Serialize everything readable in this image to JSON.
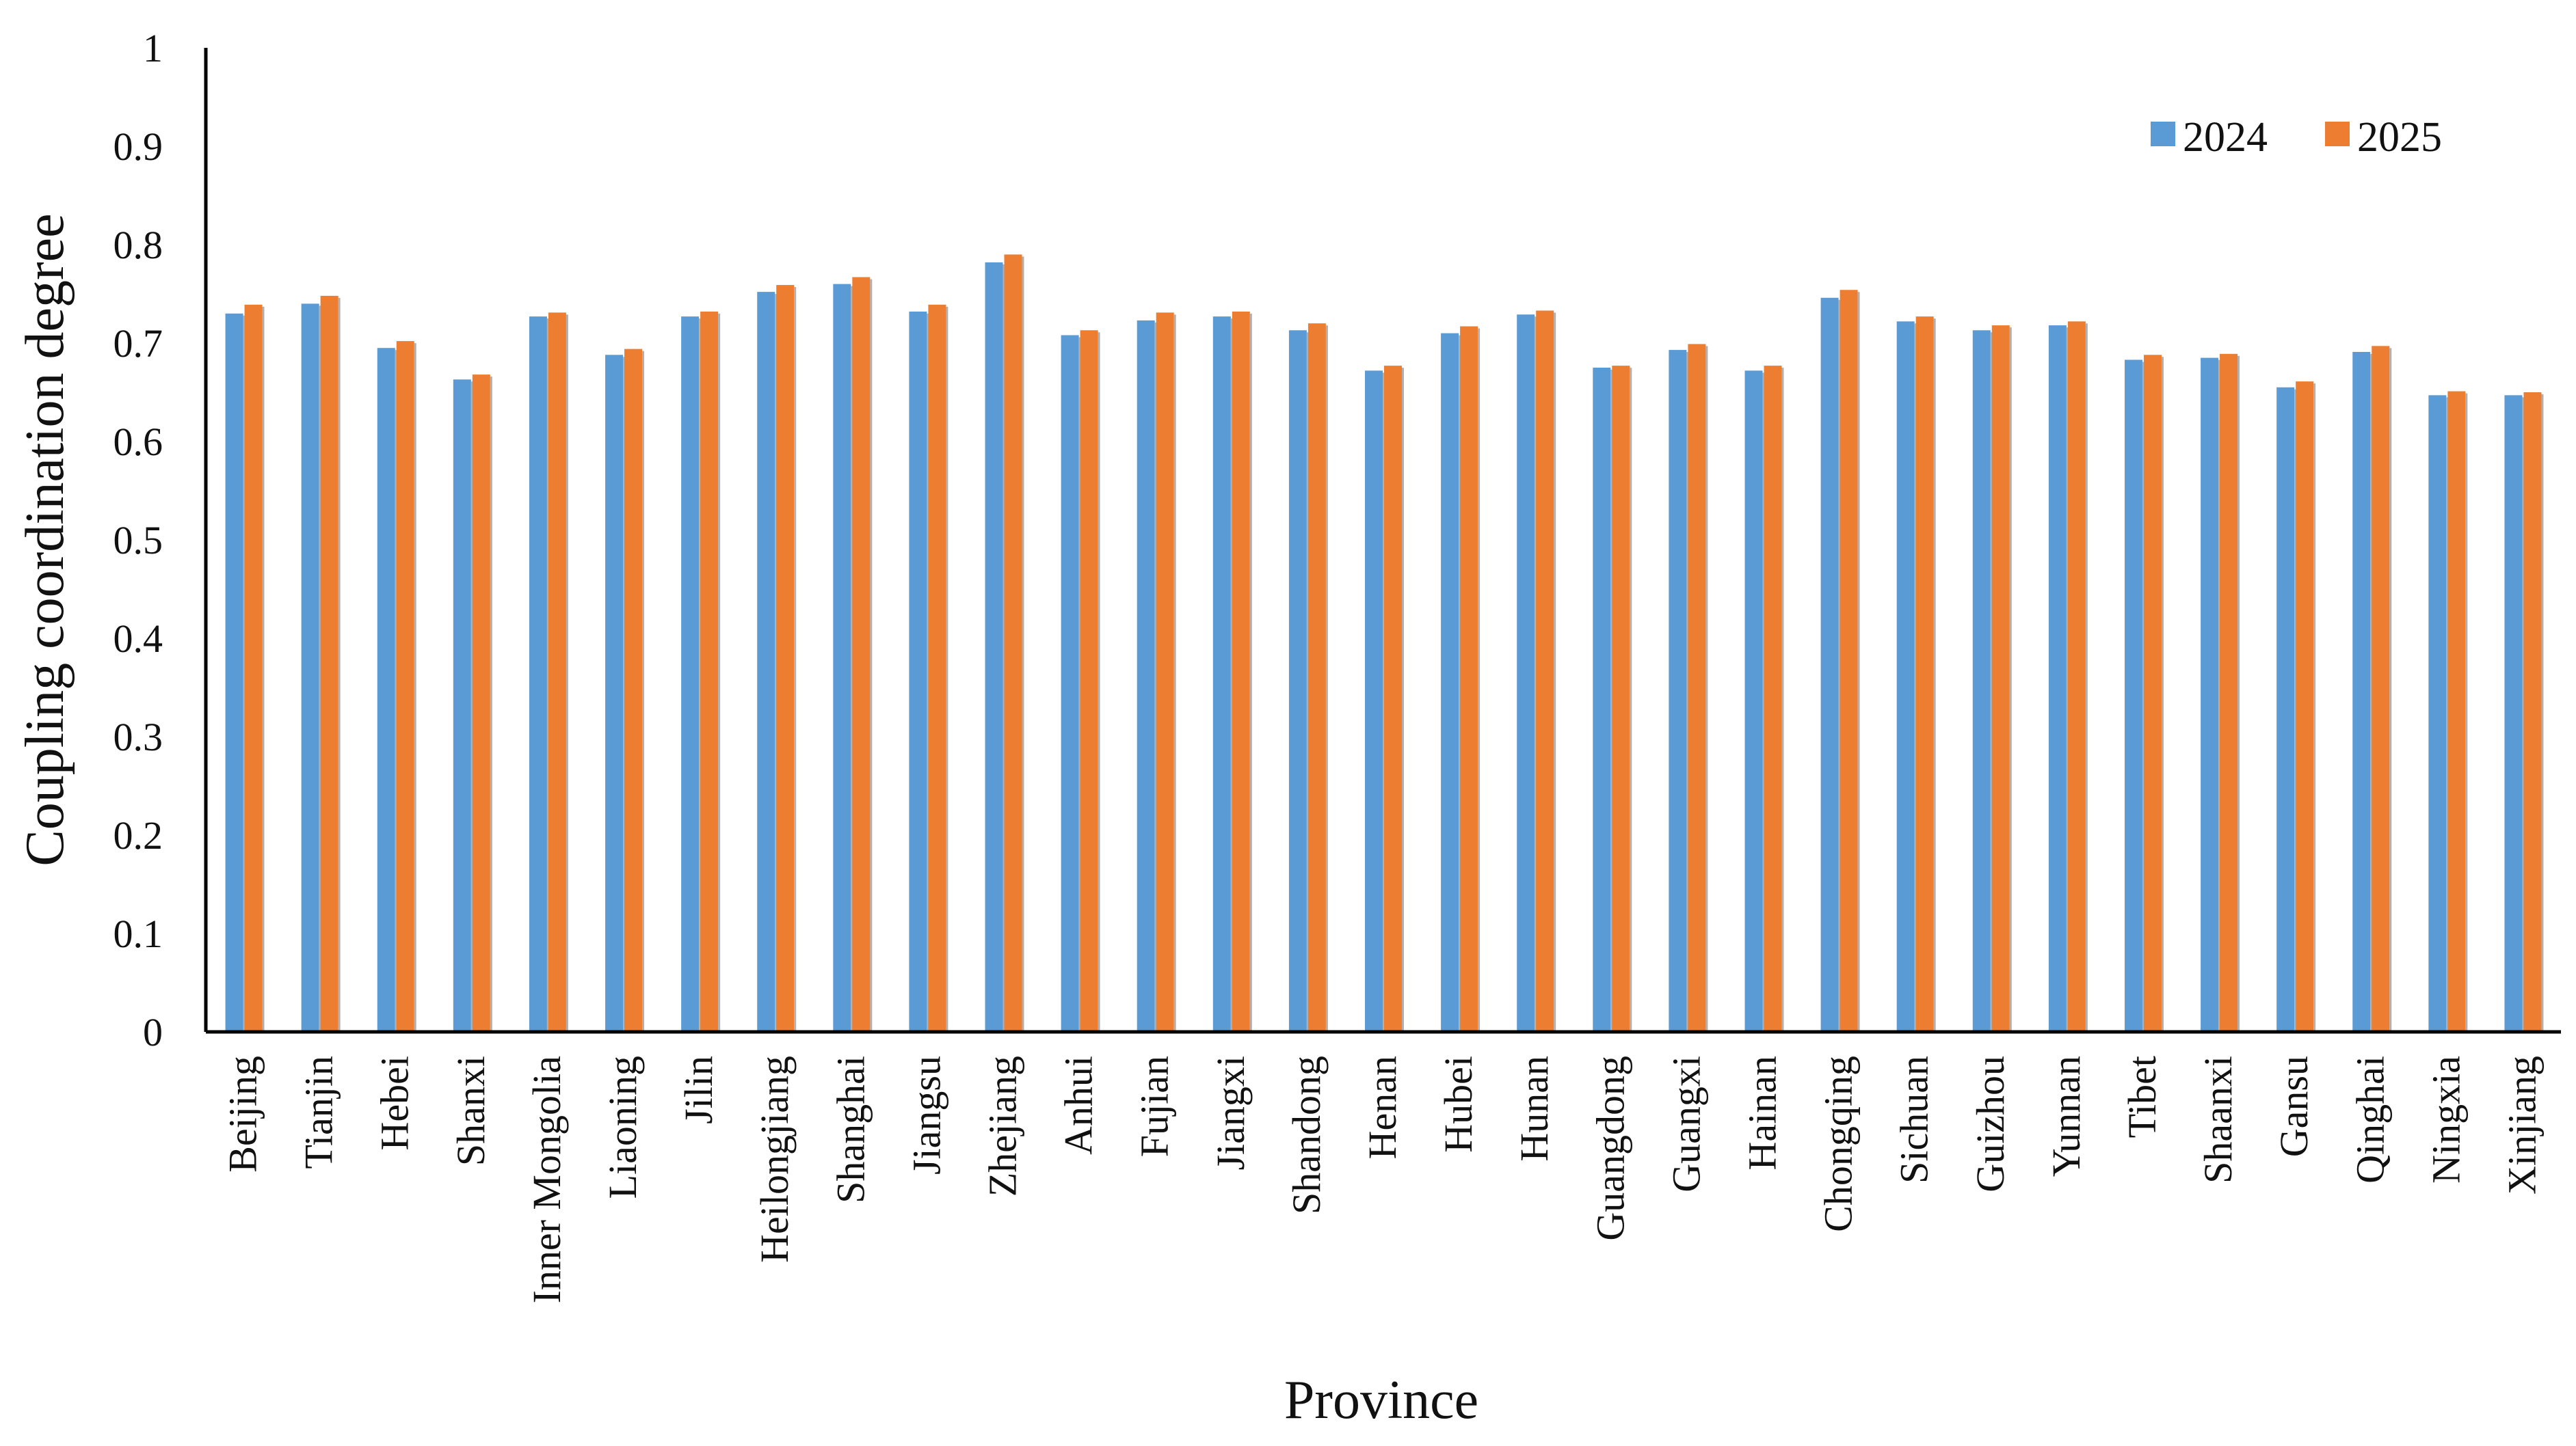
{
  "chart_data": {
    "type": "bar",
    "title": "",
    "xlabel": "Province",
    "ylabel": "Coupling coordination degree",
    "ylim": [
      0,
      1
    ],
    "yticks": [
      "0",
      "0.1",
      "0.2",
      "0.3",
      "0.4",
      "0.5",
      "0.6",
      "0.7",
      "0.8",
      "0.9",
      "1"
    ],
    "grid": false,
    "legend_position": "top-right",
    "categories": [
      "Beijing",
      "Tianjin",
      "Hebei",
      "Shanxi",
      "Inner Mongolia",
      "Liaoning",
      "Jilin",
      "Heilongjiang",
      "Shanghai",
      "Jiangsu",
      "Zhejiang",
      "Anhui",
      "Fujian",
      "Jiangxi",
      "Shandong",
      "Henan",
      "Hubei",
      "Hunan",
      "Guangdong",
      "Guangxi",
      "Hainan",
      "Chongqing",
      "Sichuan",
      "Guizhou",
      "Yunnan",
      "Tibet",
      "Shaanxi",
      "Gansu",
      "Qinghai",
      "Ningxia",
      "Xinjiang"
    ],
    "series": [
      {
        "name": "2024",
        "color": "#5b9bd5",
        "values": [
          0.73,
          0.74,
          0.695,
          0.663,
          0.727,
          0.688,
          0.727,
          0.752,
          0.76,
          0.732,
          0.782,
          0.708,
          0.723,
          0.727,
          0.713,
          0.672,
          0.71,
          0.729,
          0.675,
          0.693,
          0.672,
          0.746,
          0.722,
          0.713,
          0.718,
          0.683,
          0.685,
          0.655,
          0.691,
          0.647,
          0.647
        ]
      },
      {
        "name": "2025",
        "color": "#ed7d31",
        "values": [
          0.739,
          0.748,
          0.702,
          0.668,
          0.731,
          0.694,
          0.732,
          0.759,
          0.767,
          0.739,
          0.79,
          0.713,
          0.731,
          0.732,
          0.72,
          0.677,
          0.717,
          0.733,
          0.677,
          0.699,
          0.677,
          0.754,
          0.727,
          0.718,
          0.722,
          0.688,
          0.689,
          0.661,
          0.697,
          0.651,
          0.65
        ]
      }
    ]
  }
}
